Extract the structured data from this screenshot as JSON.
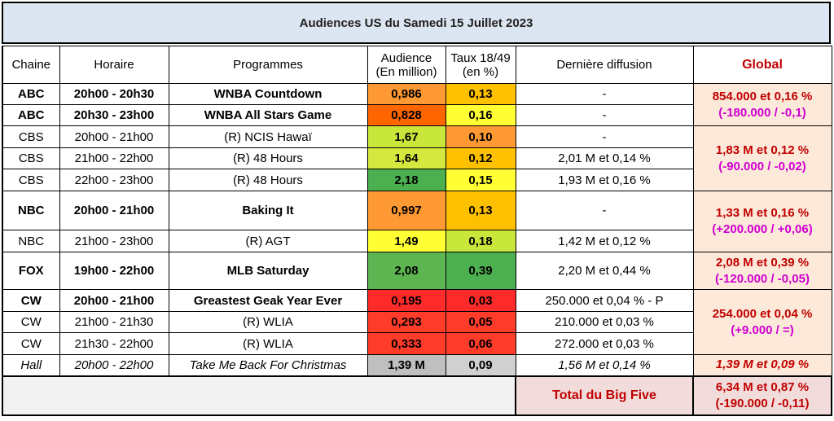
{
  "title": "Audiences US du Samedi 15 Juillet 2023",
  "headers": {
    "chaine": "Chaine",
    "horaire": "Horaire",
    "programmes": "Programmes",
    "audience_l1": "Audience",
    "audience_l2": "(En million)",
    "taux_l1": "Taux 18/49",
    "taux_l2": "(en %)",
    "derniere": "Dernière diffusion",
    "global": "Global"
  },
  "colors": {
    "header_bg": "#dce6f2",
    "global_bg": "#fde9d9",
    "global_text": "#c00000",
    "diff_text": "#d000d0",
    "green_dark": "#4caf50",
    "green_mid": "#8bc34a",
    "green_light": "#d4e83f",
    "yellow": "#ffff33",
    "yellow_orange": "#ffc000",
    "orange": "#ff9933",
    "red_orange": "#ff6600",
    "red": "#ff2a2a",
    "gray": "#bfbfbf"
  },
  "rows": [
    {
      "chaine": "ABC",
      "horaire": "20h00 - 20h30",
      "programme": "WNBA Countdown",
      "audience": "0,986",
      "taux": "0,13",
      "derniere": "-"
    },
    {
      "chaine": "ABC",
      "horaire": "20h30 - 23h00",
      "programme": "WNBA All Stars Game",
      "audience": "0,828",
      "taux": "0,16",
      "derniere": "-"
    },
    {
      "chaine": "CBS",
      "horaire": "20h00 - 21h00",
      "programme": "(R) NCIS Hawaï",
      "audience": "1,67",
      "taux": "0,10",
      "derniere": "-"
    },
    {
      "chaine": "CBS",
      "horaire": "21h00 - 22h00",
      "programme": "(R) 48 Hours",
      "audience": "1,64",
      "taux": "0,12",
      "derniere": "2,01 M et 0,14 %"
    },
    {
      "chaine": "CBS",
      "horaire": "22h00 - 23h00",
      "programme": "(R) 48 Hours",
      "audience": "2,18",
      "taux": "0,15",
      "derniere": "1,93 M et 0,16 %"
    },
    {
      "chaine": "NBC",
      "horaire": "20h00 - 21h00",
      "programme": "Baking It",
      "audience": "0,997",
      "taux": "0,13",
      "derniere": "-"
    },
    {
      "chaine": "NBC",
      "horaire": "21h00 - 23h00",
      "programme": "(R) AGT",
      "audience": "1,49",
      "taux": "0,18",
      "derniere": "1,42 M et 0,12 %"
    },
    {
      "chaine": "FOX",
      "horaire": "19h00 - 22h00",
      "programme": "MLB Saturday",
      "audience": "2,08",
      "taux": "0,39",
      "derniere": "2,20 M et 0,44 %"
    },
    {
      "chaine": "CW",
      "horaire": "20h00 - 21h00",
      "programme": "Greastest Geak Year Ever",
      "audience": "0,195",
      "taux": "0,03",
      "derniere": "250.000 et 0,04 % - P"
    },
    {
      "chaine": "CW",
      "horaire": "21h00 - 21h30",
      "programme": "(R) WLIA",
      "audience": "0,293",
      "taux": "0,05",
      "derniere": "210.000 et 0,03 %"
    },
    {
      "chaine": "CW",
      "horaire": "21h30 - 22h00",
      "programme": "(R) WLIA",
      "audience": "0,333",
      "taux": "0,06",
      "derniere": "272.000 et 0,03 %"
    },
    {
      "chaine": "Hall",
      "horaire": "20h00 - 22h00",
      "programme": "Take Me Back For Christmas",
      "audience": "1,39 M",
      "taux": "0,09",
      "derniere": "1,56 M et 0,14 %"
    }
  ],
  "globals": {
    "abc": {
      "l1": "854.000 et 0,16 %",
      "l2": "(-180.000 / -0,1)"
    },
    "cbs": {
      "l1": "1,83 M et 0,12 %",
      "l2": "(-90.000 / -0,02)"
    },
    "nbc": {
      "l1": "1,33 M et 0,16 %",
      "l2": "(+200.000 / +0,06)"
    },
    "fox": {
      "l1": "2,08 M et 0,39 %",
      "l2": "(-120.000 / -0,05)"
    },
    "cw": {
      "l1": "254.000 et 0,04 %",
      "l2": "(+9.000 / =)"
    },
    "hall": {
      "l1": "1,39 M et 0,09 %"
    }
  },
  "footer": {
    "label": "Total du Big Five",
    "l1": "6,34 M et 0,87 %",
    "l2": "(-190.000 / -0,11)"
  }
}
